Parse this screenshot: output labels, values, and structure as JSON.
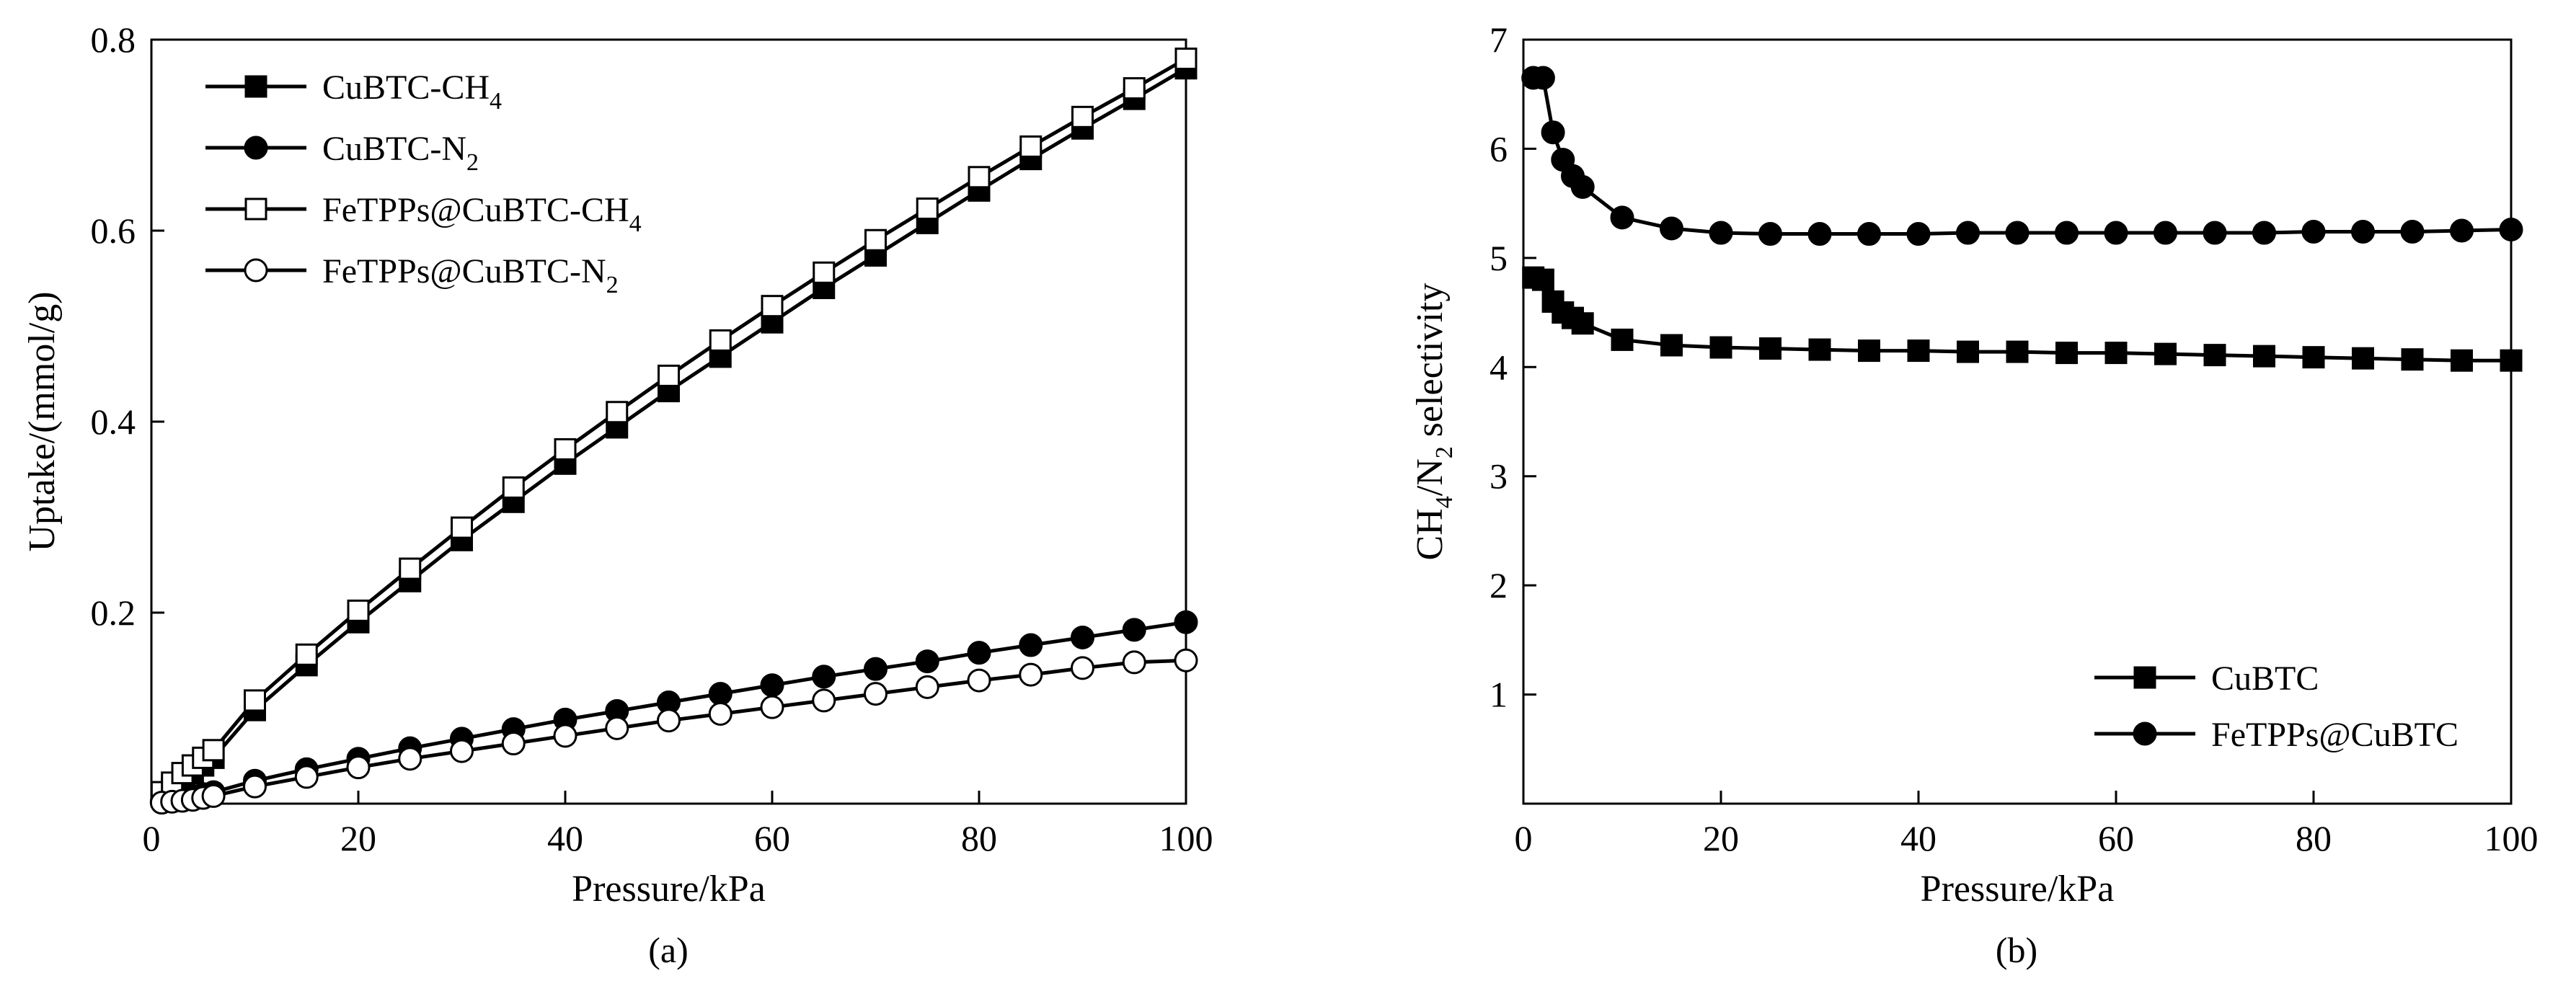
{
  "chart_data": [
    {
      "type": "line",
      "panel_label": "(a)",
      "xlabel": "Pressure/kPa",
      "ylabel": "Uptake/(mmol/g)",
      "xlim": [
        0,
        100
      ],
      "ylim": [
        0,
        0.8
      ],
      "xticks": [
        "0",
        "20",
        "40",
        "60",
        "80",
        "100"
      ],
      "yticks": [
        "0.2",
        "0.4",
        "0.6",
        "0.8"
      ],
      "legend_position": "top-left",
      "series": [
        {
          "name": "CuBTC-CH4",
          "label_main": "CuBTC-CH",
          "label_sub": "4",
          "marker": "square-filled",
          "x": [
            1,
            2,
            3,
            4,
            5,
            6,
            10,
            15,
            20,
            25,
            30,
            35,
            40,
            45,
            50,
            55,
            60,
            65,
            70,
            75,
            80,
            85,
            90,
            95,
            100
          ],
          "y": [
            0.008,
            0.016,
            0.024,
            0.032,
            0.04,
            0.048,
            0.098,
            0.145,
            0.19,
            0.233,
            0.276,
            0.316,
            0.356,
            0.394,
            0.432,
            0.468,
            0.504,
            0.54,
            0.574,
            0.608,
            0.642,
            0.675,
            0.707,
            0.738,
            0.77
          ]
        },
        {
          "name": "CuBTC-N2",
          "label_main": "CuBTC-N",
          "label_sub": "2",
          "marker": "circle-filled",
          "x": [
            1,
            2,
            3,
            4,
            5,
            6,
            10,
            15,
            20,
            25,
            30,
            35,
            40,
            45,
            50,
            55,
            60,
            65,
            70,
            75,
            80,
            85,
            90,
            95,
            100
          ],
          "y": [
            0.002,
            0.004,
            0.006,
            0.008,
            0.01,
            0.012,
            0.024,
            0.036,
            0.047,
            0.058,
            0.068,
            0.078,
            0.088,
            0.097,
            0.106,
            0.115,
            0.124,
            0.133,
            0.141,
            0.149,
            0.158,
            0.166,
            0.174,
            0.182,
            0.19
          ]
        },
        {
          "name": "FeTPPs@CuBTC-CH4",
          "label_main": "FeTPPs@CuBTC-CH",
          "label_sub": "4",
          "marker": "square-open",
          "x": [
            1,
            2,
            3,
            4,
            5,
            6,
            10,
            15,
            20,
            25,
            30,
            35,
            40,
            45,
            50,
            55,
            60,
            65,
            70,
            75,
            80,
            85,
            90,
            95,
            100
          ],
          "y": [
            0.012,
            0.022,
            0.032,
            0.04,
            0.048,
            0.056,
            0.108,
            0.156,
            0.202,
            0.246,
            0.289,
            0.331,
            0.371,
            0.41,
            0.448,
            0.485,
            0.521,
            0.556,
            0.59,
            0.623,
            0.656,
            0.688,
            0.719,
            0.749,
            0.78
          ]
        },
        {
          "name": "FeTPPs@CuBTC-N2",
          "label_main": "FeTPPs@CuBTC-N",
          "label_sub": "2",
          "marker": "circle-open",
          "x": [
            1,
            2,
            3,
            4,
            5,
            6,
            10,
            15,
            20,
            25,
            30,
            35,
            40,
            45,
            50,
            55,
            60,
            65,
            70,
            75,
            80,
            85,
            90,
            95,
            100
          ],
          "y": [
            0.001,
            0.002,
            0.003,
            0.004,
            0.006,
            0.008,
            0.018,
            0.028,
            0.038,
            0.047,
            0.055,
            0.063,
            0.071,
            0.079,
            0.087,
            0.094,
            0.101,
            0.108,
            0.115,
            0.122,
            0.129,
            0.135,
            0.142,
            0.148,
            0.15
          ]
        }
      ]
    },
    {
      "type": "line",
      "panel_label": "(b)",
      "xlabel": "Pressure/kPa",
      "ylabel_parts": [
        "CH",
        "4",
        "/N",
        "2",
        " selectivity"
      ],
      "xlim": [
        0,
        100
      ],
      "ylim": [
        0,
        7
      ],
      "xticks": [
        "0",
        "20",
        "40",
        "60",
        "80",
        "100"
      ],
      "yticks": [
        "1",
        "2",
        "3",
        "4",
        "5",
        "6",
        "7"
      ],
      "legend_position": "bottom-right",
      "series": [
        {
          "name": "CuBTC",
          "marker": "square-filled",
          "x": [
            1,
            2,
            3,
            4,
            5,
            6,
            10,
            15,
            20,
            25,
            30,
            35,
            40,
            45,
            50,
            55,
            60,
            65,
            70,
            75,
            80,
            85,
            90,
            95,
            100
          ],
          "y": [
            4.82,
            4.8,
            4.6,
            4.5,
            4.45,
            4.4,
            4.25,
            4.2,
            4.18,
            4.17,
            4.16,
            4.15,
            4.15,
            4.14,
            4.14,
            4.13,
            4.13,
            4.12,
            4.11,
            4.1,
            4.09,
            4.08,
            4.07,
            4.06,
            4.06
          ]
        },
        {
          "name": "FeTPPs@CuBTC",
          "marker": "circle-filled",
          "x": [
            1,
            2,
            3,
            4,
            5,
            6,
            10,
            15,
            20,
            25,
            30,
            35,
            40,
            45,
            50,
            55,
            60,
            65,
            70,
            75,
            80,
            85,
            90,
            95,
            100
          ],
          "y": [
            6.65,
            6.65,
            6.15,
            5.9,
            5.75,
            5.65,
            5.37,
            5.27,
            5.23,
            5.22,
            5.22,
            5.22,
            5.22,
            5.23,
            5.23,
            5.23,
            5.23,
            5.23,
            5.23,
            5.23,
            5.24,
            5.24,
            5.24,
            5.25,
            5.26
          ]
        }
      ]
    }
  ]
}
